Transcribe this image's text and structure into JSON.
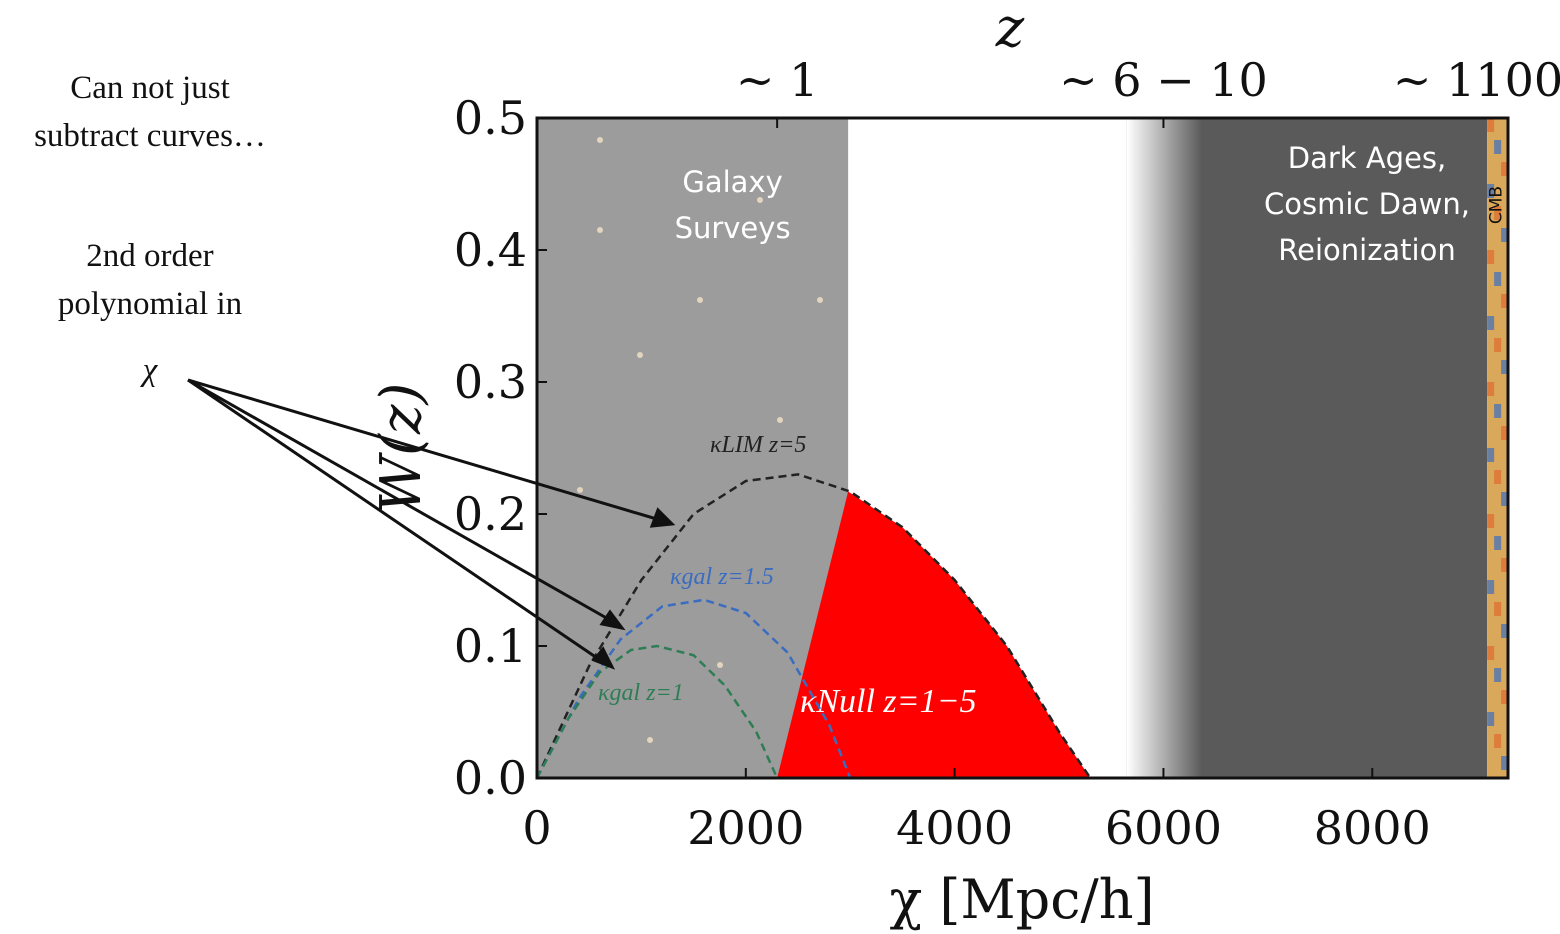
{
  "chart_data": {
    "type": "line",
    "x_label": "χ [Mpc/h]",
    "y_label": "W(z)",
    "x2_label": "z",
    "xlim": [
      0,
      9300
    ],
    "ylim": [
      0,
      0.5
    ],
    "xticks": [
      0,
      2000,
      4000,
      6000,
      8000
    ],
    "yticks": [
      {
        "value": 0,
        "label": "0.0"
      },
      0.1,
      0.2,
      0.3,
      0.4,
      0.5
    ],
    "x2ticks": [
      {
        "value": 2300,
        "label": "~ 1"
      },
      {
        "value": 6000,
        "label": "~ 6 − 10"
      },
      {
        "value": 9300,
        "label": "~ 1100"
      }
    ],
    "regions": [
      {
        "lines": [
          "Galaxy",
          "Surveys"
        ],
        "from": 0,
        "to": 2980,
        "color": "#9c9c9c"
      },
      {
        "lines": [
          "Dark Ages,",
          "Cosmic Dawn,",
          "Reionization"
        ],
        "from": 5650,
        "to": 9100,
        "color": "#5a5a5a"
      },
      {
        "lines": [
          "CMB"
        ],
        "from": 9100,
        "to": 9300,
        "color": "#d9a85a"
      }
    ],
    "series": [
      {
        "name": "κNull z=1−5",
        "color": "#ff0000",
        "fill": true,
        "x": [
          2300,
          2980,
          3500,
          4000,
          4500,
          5000,
          5300
        ],
        "values": [
          0,
          0.217,
          0.19,
          0.15,
          0.1,
          0.035,
          0
        ]
      },
      {
        "name": "κLIM z=5",
        "color": "#222222",
        "fill": false,
        "x": [
          0,
          500,
          1000,
          1500,
          2000,
          2500,
          3000,
          3500,
          4000,
          4500,
          5000,
          5300
        ],
        "values": [
          0,
          0.085,
          0.15,
          0.2,
          0.225,
          0.23,
          0.217,
          0.19,
          0.15,
          0.1,
          0.035,
          0
        ]
      },
      {
        "name": "κgal z=1.5",
        "color": "#3a6cc0",
        "fill": false,
        "x": [
          0,
          400,
          800,
          1200,
          1600,
          2000,
          2400,
          2800,
          3000
        ],
        "values": [
          0,
          0.06,
          0.105,
          0.13,
          0.135,
          0.125,
          0.095,
          0.04,
          0
        ]
      },
      {
        "name": "κgal z=1",
        "color": "#2e7d55",
        "fill": false,
        "x": [
          0,
          300,
          600,
          900,
          1150,
          1500,
          1800,
          2100,
          2300
        ],
        "values": [
          0,
          0.045,
          0.08,
          0.097,
          0.1,
          0.093,
          0.07,
          0.035,
          0
        ]
      }
    ]
  },
  "annotations": {
    "note": [
      "Can not just",
      "subtract curves…"
    ],
    "arrow_label": [
      "2nd order",
      "polynomial in",
      "χ"
    ]
  }
}
